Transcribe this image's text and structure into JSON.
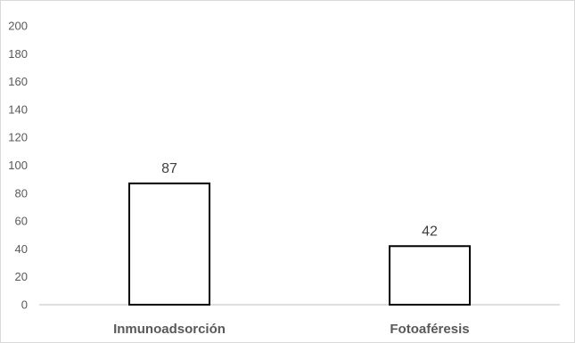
{
  "chart_data": {
    "type": "bar",
    "categories": [
      "Inmunoadsorción",
      "Fotoaféresis"
    ],
    "values": [
      87,
      42
    ],
    "data_labels": [
      "87",
      "42"
    ],
    "title": "",
    "xlabel": "",
    "ylabel": "",
    "ylim": [
      0,
      200
    ],
    "yticks": [
      "0",
      "20",
      "40",
      "60",
      "80",
      "100",
      "120",
      "140",
      "160",
      "180",
      "200"
    ],
    "grid": false,
    "legend": "none",
    "bar_fill": "#ffffff",
    "bar_stroke": "#000000"
  }
}
